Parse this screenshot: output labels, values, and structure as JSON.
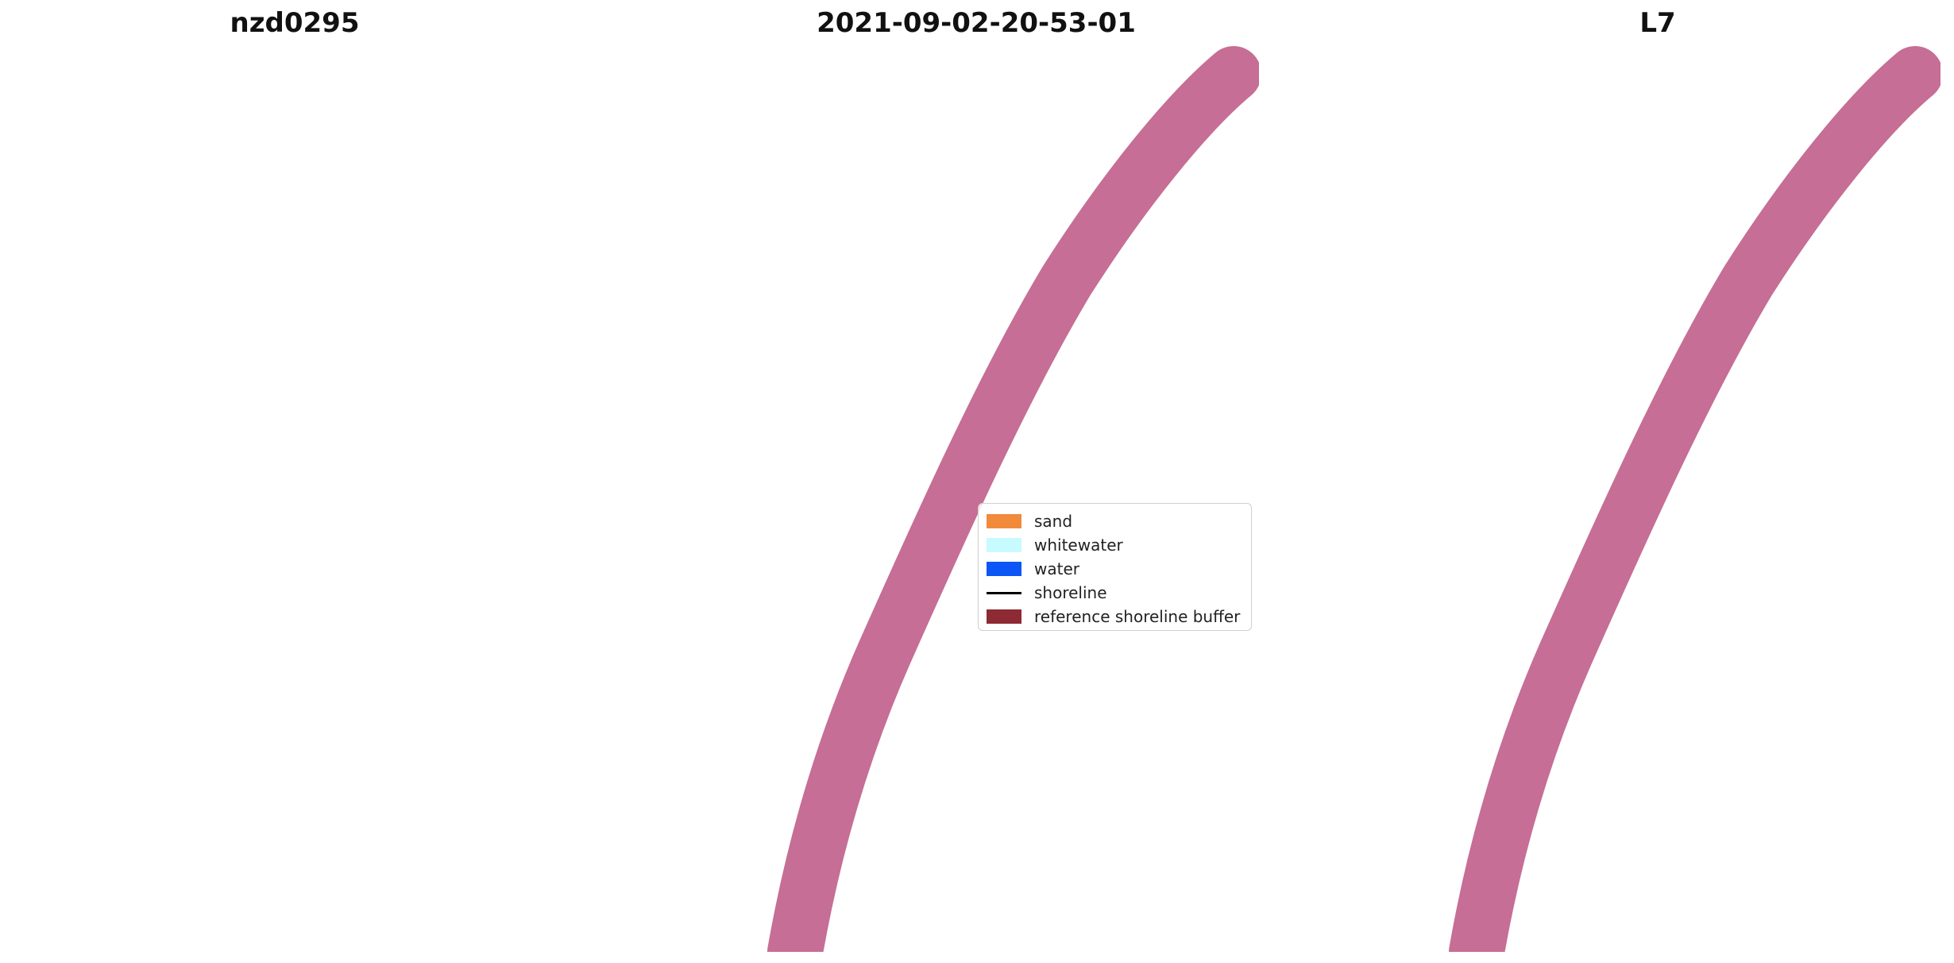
{
  "panels": {
    "left": {
      "title": "nzd0295"
    },
    "middle": {
      "title": "2021-09-02-20-53-01"
    },
    "right": {
      "title": "L7"
    }
  },
  "legend": {
    "items": [
      {
        "label": "sand",
        "color": "#f28a3c"
      },
      {
        "label": "whitewater",
        "color": "#c8fbff"
      },
      {
        "label": "water",
        "color": "#0b56f5"
      },
      {
        "label": "shoreline",
        "color": "#000000"
      },
      {
        "label": "reference shoreline buffer",
        "color": "#8e2a33"
      }
    ]
  },
  "colors": {
    "land": "#3a4a2c",
    "ocean": "#1d3c5a",
    "classified_water": "#0b56f5",
    "index_land": "#ff1a1a",
    "index_water": "#ffe4e4",
    "buffer": "#a8215c",
    "stripe_gap": "#ffffff"
  }
}
